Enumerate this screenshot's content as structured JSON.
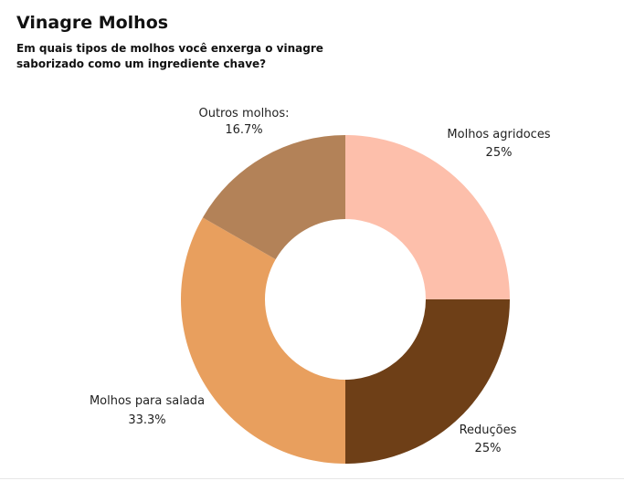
{
  "chart_data": {
    "type": "pie",
    "title": "Vinagre Molhos",
    "subtitle": "Em quais tipos de molhos você enxerga o vinagre saborizado como um ingrediente chave?",
    "slices": [
      {
        "label": "Molhos agridoces",
        "value": 25,
        "display": "25%",
        "color": "#fdbfab"
      },
      {
        "label": "Reduções",
        "value": 25,
        "display": "25%",
        "color": "#6e3f17"
      },
      {
        "label": "Molhos para salada",
        "value": 33.3,
        "display": "33.3%",
        "color": "#e89f5e"
      },
      {
        "label": "Outros molhos:",
        "value": 16.7,
        "display": "16.7%",
        "color": "#b38258"
      }
    ]
  }
}
